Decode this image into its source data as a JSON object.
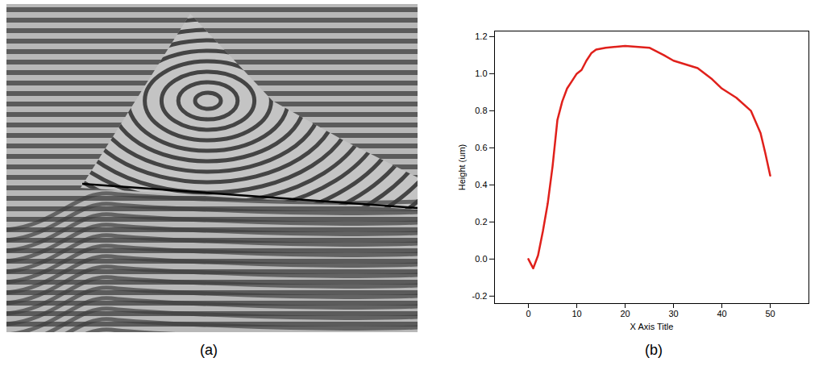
{
  "chart_data": {
    "type": "line",
    "x_label": "X Axis Title",
    "y_label": "Height (um)",
    "x": [
      0,
      1,
      2,
      3,
      4,
      5,
      6,
      7,
      8,
      9,
      10,
      11,
      12,
      13,
      14,
      16,
      20,
      25,
      28,
      30,
      35,
      38,
      40,
      43,
      46,
      48,
      49,
      50
    ],
    "values": [
      0,
      -0.05,
      0.02,
      0.15,
      0.3,
      0.5,
      0.75,
      0.85,
      0.92,
      0.96,
      1.0,
      1.02,
      1.07,
      1.11,
      1.13,
      1.14,
      1.15,
      1.14,
      1.1,
      1.07,
      1.03,
      0.97,
      0.92,
      0.87,
      0.8,
      0.68,
      0.57,
      0.45
    ],
    "color": "#e0201b",
    "xlim": [
      -7,
      58
    ],
    "ylim": [
      -0.24,
      1.23
    ],
    "xticks": [
      0,
      10,
      20,
      30,
      40,
      50
    ],
    "yticks": [
      -0.2,
      {
        "value": 0,
        "label": "0.0"
      },
      0.2,
      0.4,
      0.6,
      0.8,
      {
        "value": 1,
        "label": "1.0"
      },
      1.2
    ],
    "grid": false
  },
  "figure": {
    "captions": [
      "(a)",
      "(b)"
    ]
  }
}
